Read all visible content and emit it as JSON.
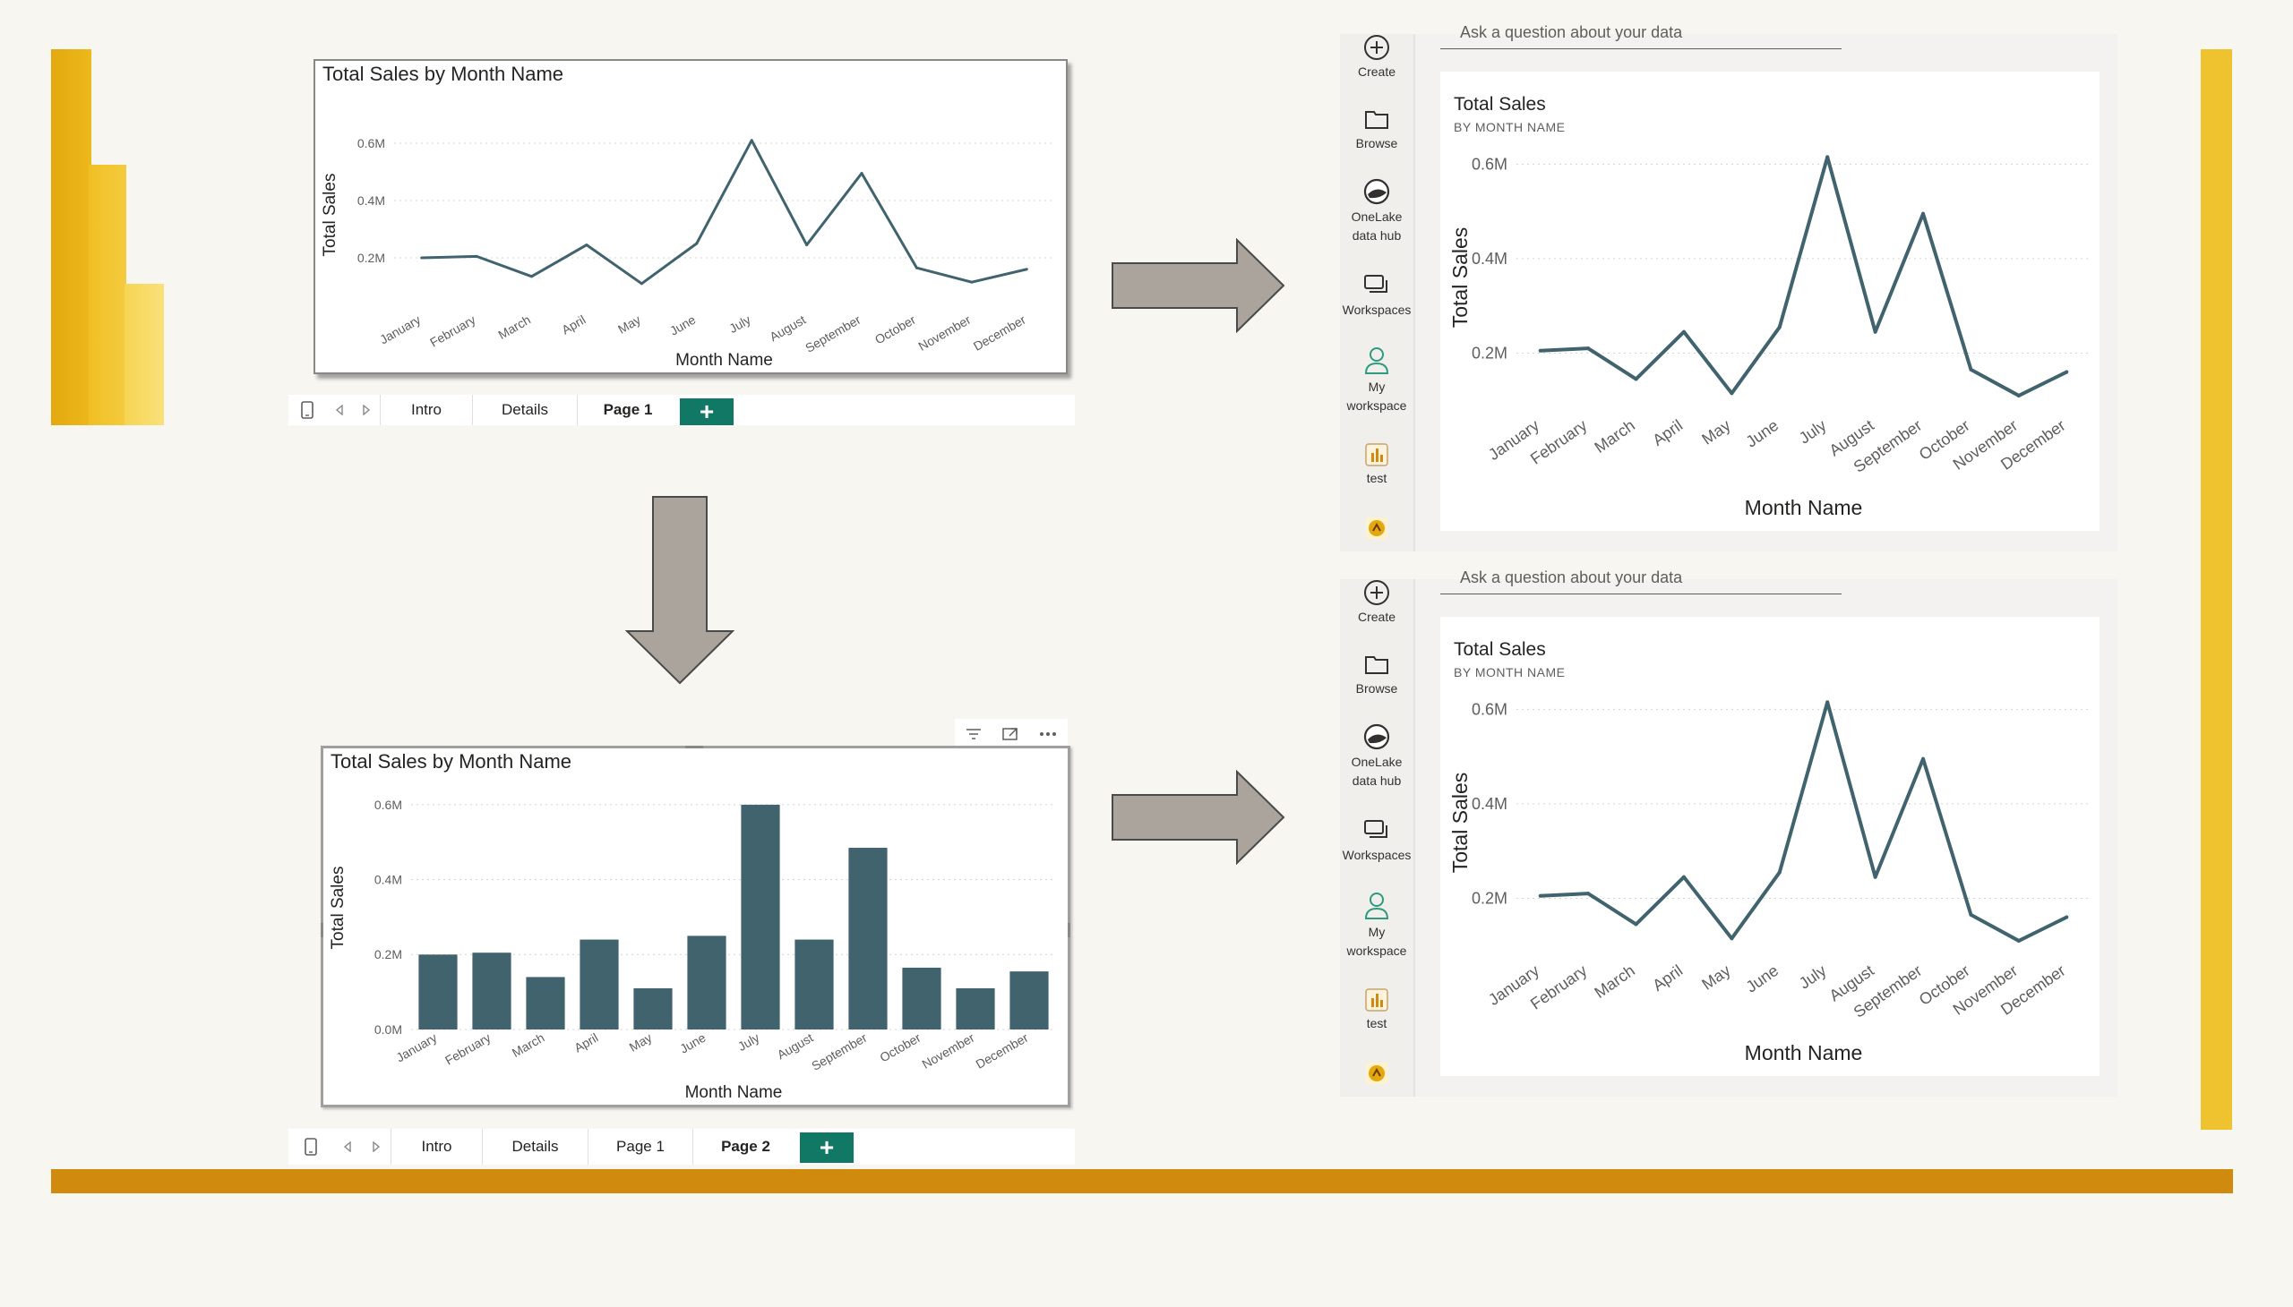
{
  "colors": {
    "background": "#f8f6f1",
    "logo_dark": "#e3a80f",
    "logo_mid": "#f2c52c",
    "logo_light": "#f8dc6b",
    "accent_bar": "#d08a0e",
    "right_bar": "#efc32f",
    "series": "#40636e",
    "arrow_fill": "#aaa49c",
    "add_tab": "#117865"
  },
  "desktop_line_visual": {
    "title": "Total Sales by Month Name"
  },
  "desktop_bar_visual": {
    "title": "Total Sales by Month Name",
    "header_icons": [
      "filter-icon",
      "focus-mode-icon",
      "more-options-icon"
    ]
  },
  "tabbar_top": {
    "tabs": [
      "Intro",
      "Details",
      "Page 1"
    ],
    "active": "Page 1",
    "add_label": "+"
  },
  "tabbar_bottom": {
    "tabs": [
      "Intro",
      "Details",
      "Page 1",
      "Page 2"
    ],
    "active": "Page 2",
    "add_label": "+"
  },
  "service_nav": {
    "items": [
      {
        "label": "Create",
        "icon": "create-icon"
      },
      {
        "label": "Browse",
        "icon": "folder-icon"
      },
      {
        "label": "OneLake\ndata hub",
        "icon": "onelake-icon"
      },
      {
        "label": "Workspaces",
        "icon": "workspaces-icon"
      },
      {
        "label": "My\nworkspace",
        "icon": "person-icon"
      },
      {
        "label": "test",
        "icon": "report-icon"
      },
      {
        "label": "",
        "icon": "app-badge-icon"
      }
    ]
  },
  "service_top": {
    "qa_text": "Ask a question about your data",
    "card_title": "Total Sales",
    "card_subtitle": "BY MONTH NAME"
  },
  "service_bottom": {
    "qa_text": "Ask a question about your data",
    "card_title": "Total Sales",
    "card_subtitle": "BY MONTH NAME"
  },
  "chart_data": [
    {
      "type": "line",
      "title": "Total Sales by Month Name",
      "xlabel": "Month Name",
      "ylabel": "Total Sales",
      "categories": [
        "January",
        "February",
        "March",
        "April",
        "May",
        "June",
        "July",
        "August",
        "September",
        "October",
        "November",
        "December"
      ],
      "values": [
        0.2,
        0.205,
        0.135,
        0.245,
        0.11,
        0.25,
        0.61,
        0.245,
        0.495,
        0.165,
        0.115,
        0.16
      ],
      "y_ticks": [
        "0.2M",
        "0.4M",
        "0.6M"
      ],
      "ylim": [
        0,
        0.7
      ],
      "grid": true
    },
    {
      "type": "bar",
      "title": "Total Sales by Month Name",
      "xlabel": "Month Name",
      "ylabel": "Total Sales",
      "categories": [
        "January",
        "February",
        "March",
        "April",
        "May",
        "June",
        "July",
        "August",
        "September",
        "October",
        "November",
        "December"
      ],
      "values": [
        0.2,
        0.205,
        0.14,
        0.24,
        0.11,
        0.25,
        0.6,
        0.24,
        0.485,
        0.165,
        0.11,
        0.155
      ],
      "y_ticks": [
        "0.0M",
        "0.2M",
        "0.4M",
        "0.6M"
      ],
      "ylim": [
        0,
        0.65
      ],
      "grid": true
    },
    {
      "type": "line",
      "title": "Total Sales",
      "subtitle": "BY MONTH NAME",
      "xlabel": "Month Name",
      "ylabel": "Total Sales",
      "categories": [
        "January",
        "February",
        "March",
        "April",
        "May",
        "June",
        "July",
        "August",
        "September",
        "October",
        "November",
        "December"
      ],
      "values": [
        0.205,
        0.21,
        0.145,
        0.245,
        0.115,
        0.255,
        0.615,
        0.245,
        0.495,
        0.165,
        0.11,
        0.16
      ],
      "y_ticks": [
        "0.2M",
        "0.4M",
        "0.6M"
      ],
      "ylim": [
        0,
        0.72
      ],
      "grid": true
    },
    {
      "type": "line",
      "title": "Total Sales",
      "subtitle": "BY MONTH NAME",
      "xlabel": "Month Name",
      "ylabel": "Total Sales",
      "categories": [
        "January",
        "February",
        "March",
        "April",
        "May",
        "June",
        "July",
        "August",
        "September",
        "October",
        "November",
        "December"
      ],
      "values": [
        0.205,
        0.21,
        0.145,
        0.245,
        0.115,
        0.255,
        0.615,
        0.245,
        0.495,
        0.165,
        0.11,
        0.16
      ],
      "y_ticks": [
        "0.2M",
        "0.4M",
        "0.6M"
      ],
      "ylim": [
        0,
        0.72
      ],
      "grid": true
    }
  ]
}
